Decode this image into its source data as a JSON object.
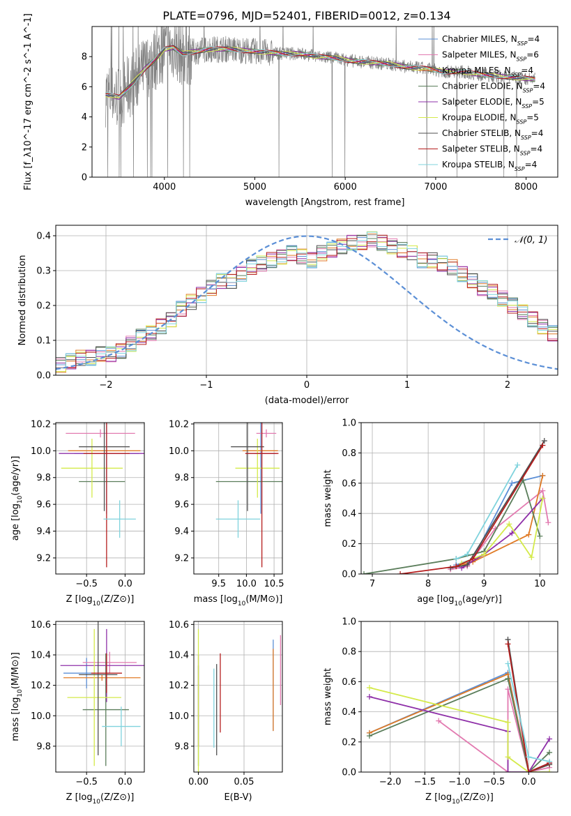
{
  "figure_title": "PLATE=0796, MJD=52401, FIBERID=0012, z=0.134",
  "colors": {
    "Chabrier MILES": "#5b8fd6",
    "Salpeter MILES": "#e27ab0",
    "Kroupa MILES": "#e07b26",
    "Chabrier ELODIE": "#5a7d5a",
    "Salpeter ELODIE": "#8e2fa8",
    "Kroupa ELODIE": "#d4ea4a",
    "Chabrier STELIB": "#4f4f4f",
    "Salpeter STELIB": "#b51d1d",
    "Kroupa STELIB": "#7fd3dd"
  },
  "chart_data": [
    {
      "id": "spectrum",
      "type": "line",
      "xlabel": "wavelength [Angstrom, rest frame]",
      "ylabel": "Flux [f_λ10^-17 erg cm^-2 s^-1 A^-1]",
      "xlim": [
        3200,
        8350
      ],
      "ylim": [
        0,
        10
      ],
      "xticks": [
        4000,
        5000,
        6000,
        7000,
        8000
      ],
      "yticks": [
        0,
        2,
        4,
        6,
        8
      ],
      "legend_position": "right",
      "legend": [
        {
          "model": "Chabrier MILES",
          "n": "4"
        },
        {
          "model": "Salpeter MILES",
          "n": "6"
        },
        {
          "model": "Kroupa MILES",
          "n": "4"
        },
        {
          "model": "Chabrier ELODIE",
          "n": "4"
        },
        {
          "model": "Salpeter ELODIE",
          "n": "5"
        },
        {
          "model": "Kroupa ELODIE",
          "n": "5"
        },
        {
          "model": "Chabrier STELIB",
          "n": "4"
        },
        {
          "model": "Salpeter STELIB",
          "n": "4"
        },
        {
          "model": "Kroupa STELIB",
          "n": "4"
        }
      ],
      "legend_suffix": ", N",
      "legend_subscript": "SSP",
      "model_continuum": {
        "x": [
          3350,
          3500,
          3600,
          3700,
          3800,
          3900,
          4000,
          4100,
          4200,
          4300,
          4500,
          4700,
          4900,
          5100,
          5300,
          5500,
          5700,
          5900,
          6100,
          6300,
          6500,
          6700,
          6900,
          7100,
          7300,
          7500,
          7700,
          7900,
          8100
        ],
        "y": [
          5.5,
          5.3,
          5.9,
          6.6,
          7.3,
          7.8,
          8.5,
          8.6,
          8.2,
          8.3,
          8.5,
          8.5,
          8.4,
          8.3,
          8.2,
          8.2,
          8.0,
          7.9,
          7.7,
          7.6,
          7.5,
          7.3,
          7.2,
          7.0,
          7.0,
          6.8,
          6.7,
          6.6,
          6.5
        ]
      },
      "data_range": [
        3350,
        8100
      ],
      "spike_notes": "noisy observed spectrum; strong telluric/sky residuals below 4300 A and near 5577, 6300, 6800, 7400 A"
    },
    {
      "id": "residuals",
      "type": "line",
      "xlabel": "(data-model)/error",
      "ylabel": "Normed distribution",
      "xlim": [
        -2.5,
        2.5
      ],
      "ylim": [
        0,
        0.43
      ],
      "xticks": [
        -2,
        -1,
        0,
        1,
        2
      ],
      "yticks": [
        0.0,
        0.1,
        0.2,
        0.3,
        0.4
      ],
      "legend_position": "top-right",
      "reference_label": "𝒩(0, 1)",
      "bin_width": 0.1,
      "bin_start": -2.5,
      "histogram": [
        0.03,
        0.04,
        0.05,
        0.05,
        0.06,
        0.06,
        0.07,
        0.09,
        0.11,
        0.12,
        0.14,
        0.16,
        0.19,
        0.21,
        0.23,
        0.25,
        0.27,
        0.27,
        0.29,
        0.31,
        0.32,
        0.33,
        0.34,
        0.35,
        0.34,
        0.33,
        0.35,
        0.36,
        0.37,
        0.38,
        0.38,
        0.39,
        0.38,
        0.37,
        0.36,
        0.35,
        0.33,
        0.33,
        0.32,
        0.31,
        0.29,
        0.27,
        0.25,
        0.24,
        0.22,
        0.2,
        0.18,
        0.16,
        0.14,
        0.12,
        0.11,
        0.1,
        0.09,
        0.08,
        0.07,
        0.06,
        0.05,
        0.05,
        0.04,
        0.04
      ]
    },
    {
      "id": "age_vs_Z",
      "type": "scatter",
      "xlabel": "Z [log10(Z/Z⊙)]",
      "ylabel": "age [log10(age/yr)]",
      "xlim": [
        -0.9,
        0.25
      ],
      "ylim": [
        9.08,
        10.21
      ],
      "xticks": [
        -0.5,
        0.0
      ],
      "yticks": [
        9.2,
        9.4,
        9.6,
        9.8,
        10.0,
        10.2
      ],
      "points": [
        {
          "model": "Chabrier MILES",
          "x": -0.24,
          "y": 9.98,
          "xerr": 0.42,
          "yerr": 0.45
        },
        {
          "model": "Salpeter MILES",
          "x": -0.32,
          "y": 10.13,
          "xerr": 0.45,
          "yerr": 0.03
        },
        {
          "model": "Kroupa MILES",
          "x": -0.27,
          "y": 10.0,
          "xerr": 0.47,
          "yerr": 0.0
        },
        {
          "model": "Chabrier ELODIE",
          "x": -0.3,
          "y": 9.77,
          "xerr": 0.3,
          "yerr": 0.0
        },
        {
          "model": "Salpeter ELODIE",
          "x": -0.26,
          "y": 9.98,
          "xerr": 0.6,
          "yerr": 0.0
        },
        {
          "model": "Kroupa ELODIE",
          "x": -0.43,
          "y": 9.87,
          "xerr": 0.4,
          "yerr": 0.22
        },
        {
          "model": "Chabrier STELIB",
          "x": -0.27,
          "y": 10.03,
          "xerr": 0.33,
          "yerr": 0.48
        },
        {
          "model": "Salpeter STELIB",
          "x": -0.24,
          "y": 9.98,
          "xerr": 0.3,
          "yerr": 0.85
        },
        {
          "model": "Kroupa STELIB",
          "x": -0.07,
          "y": 9.49,
          "xerr": 0.21,
          "yerr": 0.14
        }
      ]
    },
    {
      "id": "age_vs_mass",
      "type": "scatter",
      "xlabel": "mass [log10(M/M⊙)]",
      "ylabel": "",
      "xlim": [
        9.05,
        10.65
      ],
      "ylim": [
        9.08,
        10.21
      ],
      "xticks": [
        9.5,
        10.0,
        10.5
      ],
      "yticks": [
        9.2,
        9.4,
        9.6,
        9.8,
        10.0,
        10.2
      ],
      "points": [
        {
          "model": "Chabrier MILES",
          "x": 10.26,
          "y": 9.98,
          "xerr": 0.24,
          "yerr": 0.45
        },
        {
          "model": "Salpeter MILES",
          "x": 10.36,
          "y": 10.13,
          "xerr": 0.18,
          "yerr": 0.03
        },
        {
          "model": "Kroupa MILES",
          "x": 10.25,
          "y": 10.0,
          "xerr": 0.32,
          "yerr": 0.0
        },
        {
          "model": "Chabrier ELODIE",
          "x": 10.05,
          "y": 9.77,
          "xerr": 0.6,
          "yerr": 0.0
        },
        {
          "model": "Salpeter ELODIE",
          "x": 10.35,
          "y": 9.98,
          "xerr": 0.2,
          "yerr": 0.0
        },
        {
          "model": "Kroupa ELODIE",
          "x": 10.2,
          "y": 9.87,
          "xerr": 0.4,
          "yerr": 0.22
        },
        {
          "model": "Chabrier STELIB",
          "x": 10.02,
          "y": 10.03,
          "xerr": 0.3,
          "yerr": 0.48
        },
        {
          "model": "Salpeter STELIB",
          "x": 10.28,
          "y": 9.98,
          "xerr": 0.3,
          "yerr": 0.85
        },
        {
          "model": "Kroupa STELIB",
          "x": 9.85,
          "y": 9.49,
          "xerr": 0.4,
          "yerr": 0.14
        }
      ]
    },
    {
      "id": "weight_vs_age",
      "type": "line",
      "xlabel": "age [log10(age/yr)]",
      "ylabel": "mass weight",
      "xlim": [
        6.8,
        10.32
      ],
      "ylim": [
        0,
        1.0
      ],
      "xticks": [
        7,
        8,
        9,
        10
      ],
      "yticks": [
        0.0,
        0.2,
        0.4,
        0.6,
        0.8,
        1.0
      ],
      "series": [
        {
          "model": "Chabrier MILES",
          "x": [
            8.5,
            8.8,
            9.5,
            10.05
          ],
          "y": [
            0.06,
            0.1,
            0.6,
            0.65
          ]
        },
        {
          "model": "Salpeter MILES",
          "x": [
            8.4,
            8.7,
            9.2,
            10.05,
            10.15
          ],
          "y": [
            0.03,
            0.05,
            0.3,
            0.55,
            0.34
          ]
        },
        {
          "model": "Kroupa MILES",
          "x": [
            8.5,
            8.8,
            9.8,
            10.05
          ],
          "y": [
            0.05,
            0.08,
            0.26,
            0.65
          ]
        },
        {
          "model": "Chabrier ELODIE",
          "x": [
            6.85,
            8.5,
            9.0,
            9.7,
            10.0
          ],
          "y": [
            0.0,
            0.1,
            0.15,
            0.62,
            0.25
          ]
        },
        {
          "model": "Salpeter ELODIE",
          "x": [
            8.6,
            9.0,
            9.5,
            10.05
          ],
          "y": [
            0.04,
            0.13,
            0.27,
            0.5
          ]
        },
        {
          "model": "Kroupa ELODIE",
          "x": [
            8.6,
            9.0,
            9.45,
            9.85,
            10.05
          ],
          "y": [
            0.07,
            0.13,
            0.33,
            0.11,
            0.5
          ]
        },
        {
          "model": "Chabrier STELIB",
          "x": [
            8.4,
            8.7,
            10.08
          ],
          "y": [
            0.04,
            0.06,
            0.88
          ]
        },
        {
          "model": "Salpeter STELIB",
          "x": [
            7.5,
            8.5,
            8.8,
            10.05
          ],
          "y": [
            0.0,
            0.05,
            0.1,
            0.85
          ]
        },
        {
          "model": "Kroupa STELIB",
          "x": [
            8.5,
            8.7,
            9.6
          ],
          "y": [
            0.1,
            0.13,
            0.72
          ]
        }
      ]
    },
    {
      "id": "mass_vs_Z",
      "type": "scatter",
      "xlabel": "Z [log10(Z/Z⊙)]",
      "ylabel": "mass [log10(M/M⊙)]",
      "xlim": [
        -0.9,
        0.25
      ],
      "ylim": [
        9.63,
        10.62
      ],
      "xticks": [
        -0.5,
        0.0
      ],
      "yticks": [
        9.8,
        10.0,
        10.2,
        10.4,
        10.6
      ],
      "points": [
        {
          "model": "Chabrier MILES",
          "x": -0.5,
          "y": 10.28,
          "xerr": 0.3,
          "yerr": 0.1
        },
        {
          "model": "Salpeter MILES",
          "x": -0.2,
          "y": 10.35,
          "xerr": 0.35,
          "yerr": 0.07
        },
        {
          "model": "Kroupa MILES",
          "x": -0.3,
          "y": 10.25,
          "xerr": 0.5,
          "yerr": 0.02
        },
        {
          "model": "Chabrier ELODIE",
          "x": -0.25,
          "y": 10.04,
          "xerr": 0.3,
          "yerr": 0.37
        },
        {
          "model": "Salpeter ELODIE",
          "x": -0.24,
          "y": 10.33,
          "xerr": 0.6,
          "yerr": 0.24
        },
        {
          "model": "Kroupa ELODIE",
          "x": -0.4,
          "y": 10.12,
          "xerr": 0.35,
          "yerr": 0.45
        },
        {
          "model": "Chabrier STELIB",
          "x": -0.35,
          "y": 10.27,
          "xerr": 0.25,
          "yerr": 0.53
        },
        {
          "model": "Salpeter STELIB",
          "x": -0.24,
          "y": 10.28,
          "xerr": 0.2,
          "yerr": 0.13
        },
        {
          "model": "Kroupa STELIB",
          "x": -0.05,
          "y": 9.93,
          "xerr": 0.25,
          "yerr": 0.13
        }
      ]
    },
    {
      "id": "mass_vs_ebv",
      "type": "scatter",
      "xlabel": "E(B-V)",
      "ylabel": "",
      "xlim": [
        -0.005,
        0.092
      ],
      "ylim": [
        9.63,
        10.62
      ],
      "xticks": [
        0.0,
        0.05
      ],
      "yticks": [
        9.8,
        10.0,
        10.2,
        10.4,
        10.6
      ],
      "points": [
        {
          "model": "Chabrier MILES",
          "x": 0.082,
          "y": 10.2,
          "yerr": 0.3
        },
        {
          "model": "Salpeter MILES",
          "x": 0.09,
          "y": 10.3,
          "yerr": 0.23
        },
        {
          "model": "Kroupa MILES",
          "x": 0.082,
          "y": 10.17,
          "yerr": 0.27
        },
        {
          "model": "Chabrier ELODIE",
          "x": 0.0,
          "y": 10.0,
          "yerr": 0.33
        },
        {
          "model": "Salpeter ELODIE",
          "x": 0.0,
          "y": 10.1,
          "yerr": 0.3
        },
        {
          "model": "Kroupa ELODIE",
          "x": 0.0,
          "y": 10.1,
          "yerr": 0.47
        },
        {
          "model": "Chabrier STELIB",
          "x": 0.02,
          "y": 10.04,
          "yerr": 0.3
        },
        {
          "model": "Salpeter STELIB",
          "x": 0.024,
          "y": 10.15,
          "yerr": 0.26
        },
        {
          "model": "Kroupa STELIB",
          "x": 0.017,
          "y": 10.05,
          "yerr": 0.26
        }
      ]
    },
    {
      "id": "weight_vs_Z",
      "type": "line",
      "xlabel": "Z [log10(Z/Z⊙)]",
      "ylabel": "mass weight",
      "xlim": [
        -2.42,
        0.42
      ],
      "ylim": [
        0,
        1.0
      ],
      "xticks": [
        -2.0,
        -1.5,
        -1.0,
        -0.5,
        0.0
      ],
      "yticks": [
        0.0,
        0.2,
        0.4,
        0.6,
        0.8,
        1.0
      ],
      "series": [
        {
          "model": "Chabrier MILES",
          "x": [
            -2.3,
            -0.3,
            0.0,
            0.3
          ],
          "y": [
            0.26,
            0.66,
            0.0,
            0.06
          ]
        },
        {
          "model": "Salpeter MILES",
          "x": [
            -1.3,
            -0.3,
            -0.3,
            0.0,
            0.3
          ],
          "y": [
            0.34,
            0.0,
            0.55,
            0.0,
            0.03
          ]
        },
        {
          "model": "Kroupa MILES",
          "x": [
            -2.3,
            -0.3,
            0.0,
            0.3
          ],
          "y": [
            0.26,
            0.65,
            0.0,
            0.05
          ]
        },
        {
          "model": "Chabrier ELODIE",
          "x": [
            -2.3,
            -0.3,
            0.0,
            0.3
          ],
          "y": [
            0.24,
            0.62,
            0.0,
            0.13
          ]
        },
        {
          "model": "Salpeter ELODIE",
          "x": [
            -2.3,
            -0.3,
            -0.3,
            0.0,
            0.3
          ],
          "y": [
            0.5,
            0.27,
            0.0,
            0.0,
            0.22
          ]
        },
        {
          "model": "Kroupa ELODIE",
          "x": [
            -2.3,
            -0.3,
            -0.3,
            0.0,
            0.3
          ],
          "y": [
            0.56,
            0.33,
            0.1,
            0.0,
            0.0
          ]
        },
        {
          "model": "Chabrier STELIB",
          "x": [
            -0.3,
            0.0,
            0.3
          ],
          "y": [
            0.88,
            0.0,
            0.05
          ]
        },
        {
          "model": "Salpeter STELIB",
          "x": [
            -0.3,
            0.0,
            0.3
          ],
          "y": [
            0.85,
            0.0,
            0.06
          ]
        },
        {
          "model": "Kroupa STELIB",
          "x": [
            -0.3,
            0.0,
            0.3
          ],
          "y": [
            0.72,
            0.1,
            0.07
          ]
        }
      ]
    }
  ]
}
